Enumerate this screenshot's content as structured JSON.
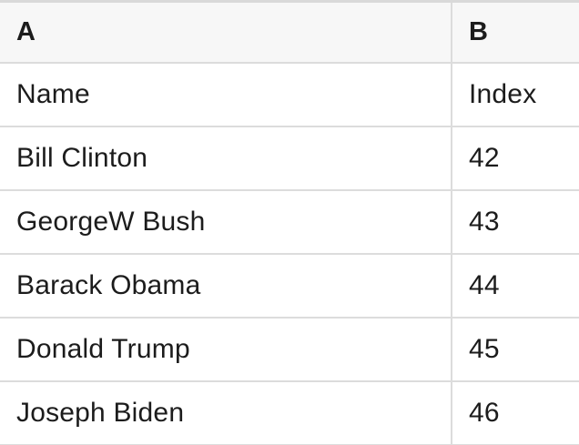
{
  "table": {
    "column_headers": [
      {
        "label": "A"
      },
      {
        "label": "B"
      }
    ],
    "rows": [
      {
        "a": "Name",
        "b": "Index"
      },
      {
        "a": "Bill Clinton",
        "b": "42"
      },
      {
        "a": "GeorgeW Bush",
        "b": "43"
      },
      {
        "a": "Barack Obama",
        "b": "44"
      },
      {
        "a": "Donald Trump",
        "b": "45"
      },
      {
        "a": "Joseph Biden",
        "b": "46"
      }
    ]
  },
  "colors": {
    "header_bg": "#f7f7f7",
    "border": "#dcdcdc",
    "top_border": "#d9d9d9",
    "text": "#1c1c1c"
  }
}
